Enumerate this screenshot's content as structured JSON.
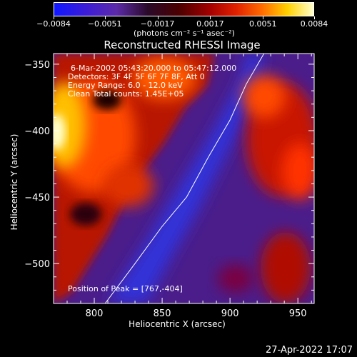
{
  "colorbar": {
    "labels": [
      "-0.0084",
      "-0.0051",
      "-0.0017",
      "0.0017",
      "0.0051",
      "0.0084"
    ],
    "values": [
      -0.0084,
      -0.0051,
      -0.0017,
      0.0017,
      0.0051,
      0.0084
    ],
    "unit": "(photons cm⁻² s⁻¹ asec⁻²)"
  },
  "annotations": {
    "time_range": "6-Mar-2002 05:43:20.000 to 05:47:12.000",
    "detectors": "Detectors: 3F 4F 5F 6F 7F 8F, Att 0",
    "energy": "Energy Range: 6.0 - 12.0 keV",
    "clean": "Clean    Total counts: 1.45E+05",
    "peak": "Position of Peak = [767,-404]"
  },
  "timestamp": "27-Apr-2022 17:07",
  "chart_data": {
    "type": "heatmap",
    "title": "Reconstructed RHESSI Image",
    "xlabel": "Heliocentric X (arcsec)",
    "ylabel": "Heliocentric Y (arcsec)",
    "xlim": [
      770,
      962
    ],
    "ylim": [
      -530,
      -342
    ],
    "xticks": [
      800,
      850,
      900,
      950
    ],
    "yticks": [
      -350,
      -400,
      -450,
      -500
    ],
    "colormap_range": [
      -0.0084,
      0.0084
    ],
    "peak": [
      767,
      -404
    ],
    "limb_curve": [
      [
        808,
        -530
      ],
      [
        830,
        -500
      ],
      [
        850,
        -472
      ],
      [
        868,
        -450
      ],
      [
        884,
        -420
      ],
      [
        900,
        -392
      ],
      [
        912,
        -365
      ],
      [
        925,
        -342
      ]
    ],
    "colors": {
      "positive": "#ff3000",
      "negative": "#5a2aa8",
      "peak": "#ffffcc"
    }
  }
}
